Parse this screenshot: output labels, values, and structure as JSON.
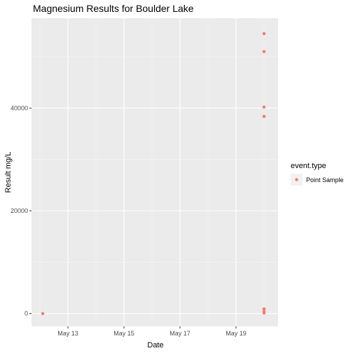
{
  "chart_data": {
    "type": "scatter",
    "title": "Magnesium Results for Boulder Lake",
    "xlabel": "Date",
    "ylabel": "Result mg/L",
    "x_tick_labels": [
      "May 13",
      "May 15",
      "May 17",
      "May 19"
    ],
    "x_tick_days": [
      13,
      15,
      17,
      19
    ],
    "y_tick_labels": [
      "0",
      "20000",
      "40000"
    ],
    "y_tick_values": [
      0,
      20000,
      40000
    ],
    "xlim": [
      11.7,
      20.5
    ],
    "ylim": [
      -2500,
      57500
    ],
    "series": [
      {
        "name": "Point Sample",
        "color": "#f8766d",
        "points": [
          {
            "x": 12.1,
            "y": 0
          },
          {
            "x": 20.0,
            "y": 54500
          },
          {
            "x": 20.0,
            "y": 51000
          },
          {
            "x": 20.0,
            "y": 40200
          },
          {
            "x": 20.0,
            "y": 38400
          },
          {
            "x": 20.0,
            "y": 900
          },
          {
            "x": 20.0,
            "y": 400
          },
          {
            "x": 20.0,
            "y": 100
          }
        ]
      }
    ],
    "legend": {
      "title": "event.type",
      "position": "right"
    },
    "grid": true
  }
}
